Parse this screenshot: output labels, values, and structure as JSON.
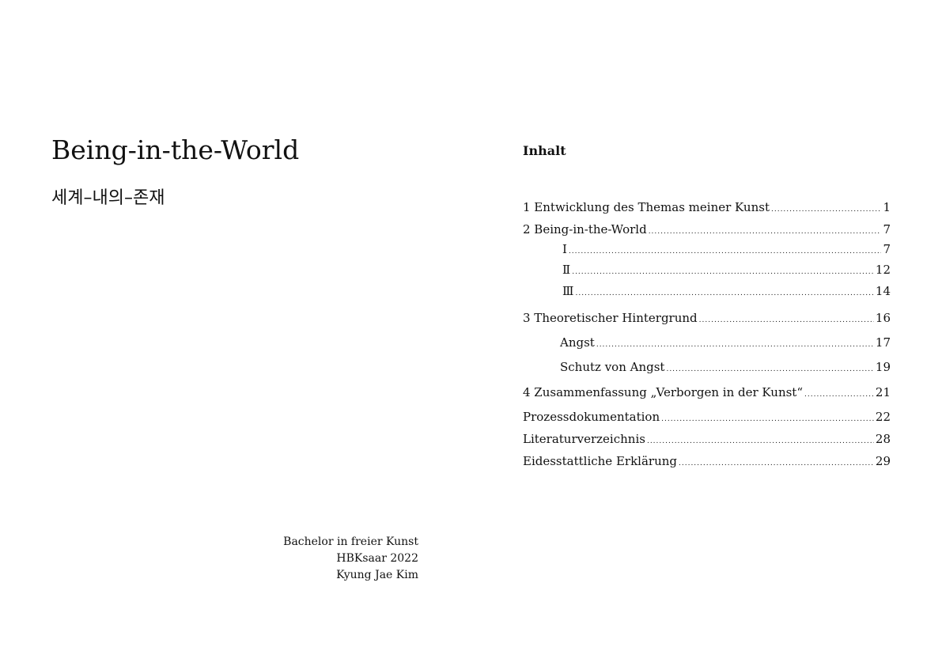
{
  "title": "Being-in-the-World",
  "subtitle": "세계–내의–존재",
  "meta": [
    "Bachelor in freier Kunst",
    "HBKsaar 2022",
    "Kyung Jae Kim"
  ],
  "toc": {
    "heading": "Inhalt",
    "entries": [
      {
        "label": "1 Entwicklung des Themas meiner Kunst",
        "page": "1"
      },
      {
        "label": "2 Being-in-the-World",
        "page": "7"
      },
      {
        "label": "Ⅰ",
        "page": "7"
      },
      {
        "label": "Ⅱ",
        "page": "12"
      },
      {
        "label": "Ⅲ",
        "page": "14"
      },
      {
        "label": "3 Theoretischer Hintergrund",
        "page": "16"
      },
      {
        "label": "Angst",
        "page": "17"
      },
      {
        "label": "Schutz von Angst",
        "page": "19"
      },
      {
        "label": "4 Zusammenfassung „Verborgen in der Kunst“",
        "page": "21"
      },
      {
        "label": "Prozessdokumentation",
        "page": "22"
      },
      {
        "label": "Literaturverzeichnis",
        "page": "28"
      },
      {
        "label": "Eidesstattliche Erklärung",
        "page": "29"
      }
    ]
  }
}
